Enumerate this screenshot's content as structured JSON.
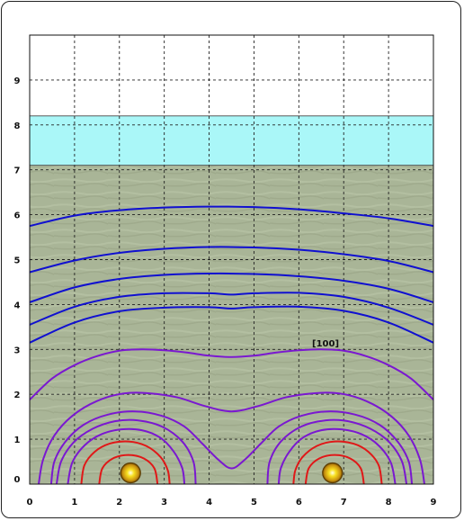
{
  "chart_data": {
    "type": "contour",
    "title": "",
    "xlabel": "",
    "ylabel": "",
    "xlim": [
      0,
      9
    ],
    "ylim": [
      0,
      10
    ],
    "x_ticks": [
      "0",
      "1",
      "2",
      "3",
      "4",
      "5",
      "6",
      "7",
      "8",
      "9"
    ],
    "y_ticks": [
      "0",
      "1",
      "2",
      "3",
      "4",
      "5",
      "6",
      "7",
      "8",
      "9"
    ],
    "grid": true,
    "layers": [
      {
        "name": "air",
        "y_range": [
          8.2,
          10
        ],
        "color": "#ffffff"
      },
      {
        "name": "water",
        "y_range": [
          7.1,
          8.2
        ],
        "color": "#aaf7f8"
      },
      {
        "name": "soil",
        "y_range": [
          0,
          7.1
        ],
        "color": "#a9b597"
      }
    ],
    "sources": [
      {
        "x": 2.25,
        "y": 0.25
      },
      {
        "x": 6.75,
        "y": 0.25
      }
    ],
    "contour_label": "[100]",
    "contours": [
      {
        "color": "#1010d0",
        "points": [
          [
            0,
            5.75
          ],
          [
            1,
            5.98
          ],
          [
            2,
            6.1
          ],
          [
            3,
            6.16
          ],
          [
            4,
            6.18
          ],
          [
            5,
            6.17
          ],
          [
            6,
            6.12
          ],
          [
            7,
            6.03
          ],
          [
            8,
            5.92
          ],
          [
            9,
            5.75
          ]
        ]
      },
      {
        "color": "#1010d0",
        "points": [
          [
            0,
            4.72
          ],
          [
            1,
            4.98
          ],
          [
            2,
            5.15
          ],
          [
            3,
            5.24
          ],
          [
            4,
            5.28
          ],
          [
            5,
            5.27
          ],
          [
            6,
            5.22
          ],
          [
            7,
            5.12
          ],
          [
            8,
            4.97
          ],
          [
            9,
            4.72
          ]
        ]
      },
      {
        "color": "#1010d0",
        "points": [
          [
            0,
            4.05
          ],
          [
            1,
            4.38
          ],
          [
            2,
            4.57
          ],
          [
            3,
            4.66
          ],
          [
            4,
            4.69
          ],
          [
            5,
            4.68
          ],
          [
            6,
            4.63
          ],
          [
            7,
            4.53
          ],
          [
            8,
            4.35
          ],
          [
            9,
            4.05
          ]
        ]
      },
      {
        "color": "#1010d0",
        "points": [
          [
            0,
            3.55
          ],
          [
            1,
            3.95
          ],
          [
            2,
            4.17
          ],
          [
            3,
            4.25
          ],
          [
            4,
            4.25
          ],
          [
            4.5,
            4.22
          ],
          [
            5,
            4.25
          ],
          [
            6,
            4.26
          ],
          [
            7,
            4.17
          ],
          [
            8,
            3.93
          ],
          [
            9,
            3.55
          ]
        ]
      },
      {
        "color": "#1010d0",
        "points": [
          [
            0,
            3.15
          ],
          [
            1,
            3.6
          ],
          [
            2,
            3.85
          ],
          [
            3,
            3.93
          ],
          [
            4,
            3.94
          ],
          [
            4.5,
            3.91
          ],
          [
            5,
            3.94
          ],
          [
            6,
            3.95
          ],
          [
            7,
            3.86
          ],
          [
            8,
            3.6
          ],
          [
            9,
            3.15
          ]
        ]
      },
      {
        "color": "#7a18d0",
        "points": [
          [
            0,
            1.88
          ],
          [
            0.5,
            2.35
          ],
          [
            1,
            2.65
          ],
          [
            1.5,
            2.85
          ],
          [
            2,
            2.97
          ],
          [
            2.5,
            3.0
          ],
          [
            3,
            2.98
          ],
          [
            3.5,
            2.93
          ],
          [
            4,
            2.86
          ],
          [
            4.5,
            2.83
          ],
          [
            5,
            2.86
          ],
          [
            5.5,
            2.93
          ],
          [
            6,
            2.98
          ],
          [
            6.5,
            3.0
          ],
          [
            7,
            2.97
          ],
          [
            7.5,
            2.85
          ],
          [
            8,
            2.65
          ],
          [
            8.5,
            2.35
          ],
          [
            9,
            1.88
          ]
        ]
      },
      {
        "color": "#7a18d0",
        "points": [
          [
            0.2,
            0
          ],
          [
            0.3,
            0.55
          ],
          [
            0.55,
            1.08
          ],
          [
            0.95,
            1.52
          ],
          [
            1.5,
            1.85
          ],
          [
            2.1,
            2.02
          ],
          [
            2.7,
            2.02
          ],
          [
            3.3,
            1.93
          ],
          [
            3.9,
            1.74
          ],
          [
            4.5,
            1.62
          ],
          [
            5.1,
            1.74
          ],
          [
            5.7,
            1.93
          ],
          [
            6.3,
            2.02
          ],
          [
            6.9,
            2.02
          ],
          [
            7.5,
            1.85
          ],
          [
            8.05,
            1.52
          ],
          [
            8.45,
            1.08
          ],
          [
            8.7,
            0.55
          ],
          [
            8.8,
            0
          ]
        ]
      },
      {
        "color": "#7a18d0",
        "points": [
          [
            0.48,
            0
          ],
          [
            0.55,
            0.5
          ],
          [
            0.8,
            0.95
          ],
          [
            1.2,
            1.32
          ],
          [
            1.75,
            1.55
          ],
          [
            2.35,
            1.62
          ],
          [
            2.95,
            1.52
          ],
          [
            3.45,
            1.28
          ],
          [
            3.85,
            0.9
          ],
          [
            4.2,
            0.55
          ],
          [
            4.5,
            0.35
          ],
          [
            4.8,
            0.55
          ],
          [
            5.15,
            0.9
          ],
          [
            5.55,
            1.28
          ],
          [
            6.05,
            1.52
          ],
          [
            6.65,
            1.62
          ],
          [
            7.25,
            1.55
          ],
          [
            7.8,
            1.32
          ],
          [
            8.2,
            0.95
          ],
          [
            8.45,
            0.5
          ],
          [
            8.52,
            0
          ]
        ]
      },
      {
        "color": "#7a18d0",
        "points": [
          [
            0.6,
            0
          ],
          [
            0.7,
            0.5
          ],
          [
            0.98,
            0.93
          ],
          [
            1.4,
            1.23
          ],
          [
            1.9,
            1.4
          ],
          [
            2.4,
            1.42
          ],
          [
            2.95,
            1.28
          ],
          [
            3.4,
            0.95
          ],
          [
            3.65,
            0.5
          ],
          [
            3.7,
            0
          ]
        ]
      },
      {
        "color": "#7a18d0",
        "points": [
          [
            5.3,
            0
          ],
          [
            5.35,
            0.5
          ],
          [
            5.6,
            0.95
          ],
          [
            6.05,
            1.28
          ],
          [
            6.6,
            1.42
          ],
          [
            7.1,
            1.4
          ],
          [
            7.6,
            1.23
          ],
          [
            8.02,
            0.93
          ],
          [
            8.3,
            0.5
          ],
          [
            8.4,
            0
          ]
        ]
      },
      {
        "color": "#7a18d0",
        "points": [
          [
            0.85,
            0
          ],
          [
            0.95,
            0.48
          ],
          [
            1.22,
            0.86
          ],
          [
            1.6,
            1.11
          ],
          [
            2.05,
            1.22
          ],
          [
            2.5,
            1.2
          ],
          [
            2.9,
            1.04
          ],
          [
            3.2,
            0.74
          ],
          [
            3.4,
            0.36
          ],
          [
            3.45,
            0
          ]
        ]
      },
      {
        "color": "#7a18d0",
        "points": [
          [
            5.55,
            0
          ],
          [
            5.6,
            0.36
          ],
          [
            5.8,
            0.74
          ],
          [
            6.1,
            1.04
          ],
          [
            6.5,
            1.2
          ],
          [
            6.95,
            1.22
          ],
          [
            7.4,
            1.11
          ],
          [
            7.78,
            0.86
          ],
          [
            8.05,
            0.48
          ],
          [
            8.15,
            0
          ]
        ]
      },
      {
        "color": "#e01818",
        "points": [
          [
            1.15,
            0
          ],
          [
            1.22,
            0.42
          ],
          [
            1.45,
            0.72
          ],
          [
            1.78,
            0.9
          ],
          [
            2.2,
            0.95
          ],
          [
            2.6,
            0.85
          ],
          [
            2.92,
            0.6
          ],
          [
            3.08,
            0.3
          ],
          [
            3.12,
            0
          ]
        ]
      },
      {
        "color": "#e01818",
        "points": [
          [
            5.88,
            0
          ],
          [
            5.92,
            0.3
          ],
          [
            6.08,
            0.6
          ],
          [
            6.4,
            0.85
          ],
          [
            6.8,
            0.95
          ],
          [
            7.22,
            0.9
          ],
          [
            7.55,
            0.72
          ],
          [
            7.78,
            0.42
          ],
          [
            7.85,
            0
          ]
        ]
      },
      {
        "color": "#e01818",
        "points": [
          [
            1.55,
            0
          ],
          [
            1.62,
            0.35
          ],
          [
            1.85,
            0.57
          ],
          [
            2.2,
            0.65
          ],
          [
            2.55,
            0.57
          ],
          [
            2.78,
            0.35
          ],
          [
            2.85,
            0
          ]
        ]
      },
      {
        "color": "#e01818",
        "points": [
          [
            6.15,
            0
          ],
          [
            6.22,
            0.35
          ],
          [
            6.45,
            0.57
          ],
          [
            6.8,
            0.65
          ],
          [
            7.15,
            0.57
          ],
          [
            7.38,
            0.35
          ],
          [
            7.45,
            0
          ]
        ]
      }
    ]
  }
}
